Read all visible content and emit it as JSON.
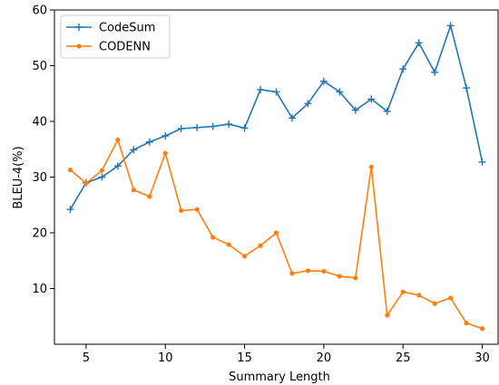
{
  "chart_data": {
    "type": "line",
    "title": "",
    "xlabel": "Summary Length",
    "ylabel": "BLEU-4(%)",
    "xlim": [
      3,
      31
    ],
    "ylim": [
      0,
      60
    ],
    "xticks": [
      5,
      10,
      15,
      20,
      25,
      30
    ],
    "yticks": [
      10,
      20,
      30,
      40,
      50,
      60
    ],
    "grid": false,
    "legend_position": "top-left",
    "x": [
      4,
      5,
      6,
      7,
      8,
      9,
      10,
      11,
      12,
      13,
      14,
      15,
      16,
      17,
      18,
      19,
      20,
      21,
      22,
      23,
      24,
      25,
      26,
      27,
      28,
      29,
      30
    ],
    "series": [
      {
        "name": "CodeSum",
        "color": "#1f77b4",
        "marker": "plus",
        "values": [
          24.2,
          29.0,
          30.0,
          32.0,
          34.9,
          36.3,
          37.4,
          38.7,
          38.9,
          39.1,
          39.5,
          38.8,
          45.7,
          45.3,
          40.6,
          43.2,
          47.2,
          45.3,
          42.0,
          44.0,
          41.8,
          49.4,
          54.1,
          48.8,
          57.2,
          46.0,
          32.7
        ]
      },
      {
        "name": "CODENN",
        "color": "#ff7f0e",
        "marker": "dot",
        "values": [
          31.3,
          28.9,
          31.2,
          36.7,
          27.7,
          26.5,
          34.3,
          24.0,
          24.2,
          19.2,
          17.9,
          15.8,
          17.7,
          20.0,
          12.7,
          13.2,
          13.1,
          12.2,
          11.9,
          31.8,
          5.2,
          9.4,
          8.8,
          7.3,
          8.3,
          3.8,
          2.8
        ]
      }
    ]
  }
}
